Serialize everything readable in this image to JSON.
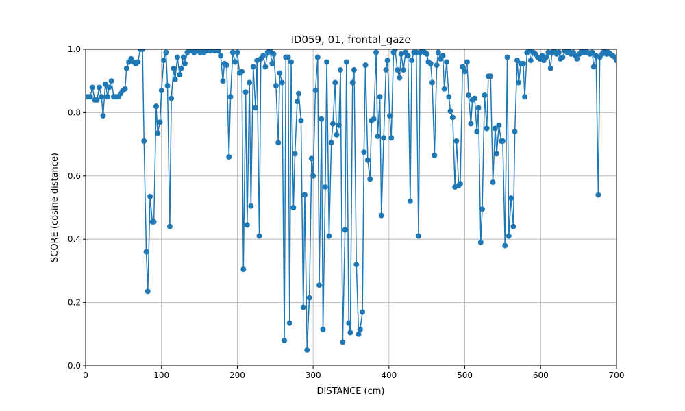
{
  "chart_data": {
    "type": "line",
    "title": "ID059, 01, frontal_gaze",
    "xlabel": "DISTANCE (cm)",
    "ylabel": "SCORE (cosine distance)",
    "color": "#1f77b4",
    "grid": true,
    "x": [
      0,
      3,
      6,
      9,
      12,
      15,
      18,
      21,
      23,
      26,
      29,
      31,
      34,
      37,
      40,
      43,
      46,
      49,
      52,
      54,
      57,
      60,
      63,
      66,
      69,
      72,
      75,
      77,
      80,
      82,
      85,
      88,
      90,
      93,
      95,
      98,
      100,
      103,
      106,
      108,
      111,
      113,
      116,
      118,
      121,
      124,
      126,
      129,
      131,
      134,
      137,
      140,
      143,
      146,
      148,
      151,
      154,
      156,
      159,
      162,
      164,
      167,
      170,
      172,
      175,
      178,
      181,
      183,
      186,
      189,
      191,
      194,
      197,
      200,
      203,
      206,
      208,
      211,
      213,
      216,
      218,
      221,
      224,
      226,
      229,
      231,
      234,
      237,
      240,
      243,
      246,
      248,
      251,
      254,
      256,
      259,
      262,
      264,
      267,
      269,
      271,
      274,
      276,
      279,
      281,
      284,
      287,
      289,
      292,
      295,
      298,
      300,
      303,
      306,
      308,
      311,
      313,
      316,
      318,
      321,
      324,
      326,
      329,
      331,
      334,
      336,
      339,
      342,
      344,
      347,
      349,
      352,
      354,
      357,
      360,
      362,
      365,
      367,
      369,
      372,
      375,
      377,
      380,
      383,
      385,
      388,
      390,
      393,
      396,
      398,
      401,
      403,
      406,
      408,
      411,
      414,
      416,
      419,
      422,
      425,
      428,
      430,
      433,
      436,
      439,
      441,
      444,
      447,
      450,
      452,
      455,
      457,
      460,
      463,
      465,
      468,
      471,
      473,
      476,
      479,
      481,
      484,
      487,
      489,
      492,
      494,
      497,
      500,
      503,
      505,
      508,
      510,
      513,
      516,
      518,
      521,
      523,
      526,
      529,
      531,
      534,
      537,
      540,
      542,
      545,
      548,
      550,
      553,
      556,
      558,
      561,
      564,
      566,
      569,
      571,
      574,
      577,
      579,
      582,
      585,
      587,
      590,
      593,
      596,
      599,
      602,
      604,
      607,
      610,
      613,
      615,
      618,
      621,
      624,
      626,
      629,
      632,
      635,
      637,
      640,
      643,
      646,
      648,
      651,
      654,
      657,
      659,
      662,
      665,
      668,
      670,
      673,
      676,
      678,
      681,
      684,
      687,
      689,
      692,
      695,
      698,
      700
    ],
    "values": [
      0.85,
      0.85,
      0.85,
      0.88,
      0.84,
      0.84,
      0.88,
      0.85,
      0.79,
      0.89,
      0.85,
      0.88,
      0.9,
      0.85,
      0.85,
      0.85,
      0.86,
      0.87,
      0.875,
      0.94,
      0.96,
      0.97,
      0.96,
      0.955,
      0.96,
      1,
      1,
      0.71,
      0.36,
      0.235,
      0.535,
      0.455,
      0.455,
      0.82,
      0.735,
      0.77,
      0.87,
      0.965,
      0.99,
      0.885,
      0.44,
      0.845,
      0.94,
      0.905,
      0.975,
      0.92,
      0.94,
      0.975,
      0.955,
      0.99,
      1,
      0.995,
      0.99,
      0.995,
      1,
      0.99,
      0.995,
      0.99,
      0.995,
      1,
      0.995,
      1,
      0.995,
      1,
      0.995,
      0.98,
      0.9,
      0.955,
      0.95,
      0.66,
      0.85,
      0.99,
      0.96,
      0.99,
      0.925,
      0.93,
      0.305,
      0.865,
      0.445,
      0.895,
      0.505,
      0.945,
      0.815,
      0.965,
      0.41,
      0.97,
      0.98,
      0.945,
      0.99,
      0.995,
      0.955,
      0.985,
      0.885,
      0.705,
      0.925,
      0.895,
      0.08,
      0.975,
      0.975,
      0.135,
      0.96,
      0.5,
      0.67,
      0.835,
      0.86,
      0.775,
      0.185,
      0.54,
      0.05,
      0.215,
      0.655,
      0.6,
      0.87,
      0.975,
      0.255,
      0.78,
      0.115,
      0.565,
      0.96,
      0.41,
      0.705,
      0.765,
      0.895,
      0.73,
      0.76,
      0.935,
      0.075,
      0.43,
      0.96,
      0.135,
      0.105,
      0.895,
      0.935,
      0.32,
      0.1,
      0.115,
      0.17,
      0.675,
      0.95,
      0.65,
      0.59,
      0.775,
      0.78,
      0.99,
      0.725,
      0.85,
      0.475,
      0.72,
      0.935,
      0.965,
      0.79,
      0.72,
      0.99,
      1,
      0.935,
      0.91,
      0.985,
      0.935,
      0.99,
      0.98,
      0.52,
      0.965,
      0.99,
      0.99,
      0.41,
      0.99,
      0.995,
      0.99,
      0.985,
      0.96,
      0.955,
      0.895,
      0.665,
      0.95,
      0.99,
      0.97,
      0.98,
      0.875,
      0.96,
      0.85,
      0.805,
      0.785,
      0.565,
      0.71,
      0.57,
      0.575,
      0.945,
      0.93,
      0.96,
      0.855,
      0.765,
      0.84,
      0.845,
      0.74,
      0.815,
      0.39,
      0.495,
      0.855,
      0.75,
      0.915,
      0.915,
      0.58,
      0.75,
      0.67,
      0.76,
      0.71,
      0.71,
      0.38,
      0.975,
      0.41,
      0.53,
      0.44,
      0.74,
      0.965,
      0.895,
      0.955,
      0.955,
      0.85,
      0.99,
      0.995,
      0.965,
      0.99,
      0.985,
      0.975,
      0.97,
      0.98,
      0.965,
      0.975,
      0.99,
      0.94,
      0.99,
      0.995,
      0.985,
      0.99,
      0.97,
      0.975,
      0.995,
      0.99,
      0.995,
      0.985,
      0.99,
      0.98,
      0.97,
      0.985,
      0.995,
      0.99,
      0.995,
      0.99,
      0.985,
      0.99,
      0.945,
      0.98,
      0.54,
      0.975,
      0.985,
      0.995,
      0.985,
      0.99,
      0.985,
      0.98,
      0.975,
      0.965
    ],
    "xlim": [
      0,
      700
    ],
    "xticks": [
      0,
      100,
      200,
      300,
      400,
      500,
      600,
      700
    ],
    "ylim": [
      0,
      1
    ],
    "yticks": [
      {
        "value": 0,
        "label": "0.0"
      },
      {
        "value": 0.2,
        "label": "0.2"
      },
      {
        "value": 0.4,
        "label": "0.4"
      },
      {
        "value": 0.6,
        "label": "0.6"
      },
      {
        "value": 0.8,
        "label": "0.8"
      },
      {
        "value": 1,
        "label": "1.0"
      }
    ]
  }
}
